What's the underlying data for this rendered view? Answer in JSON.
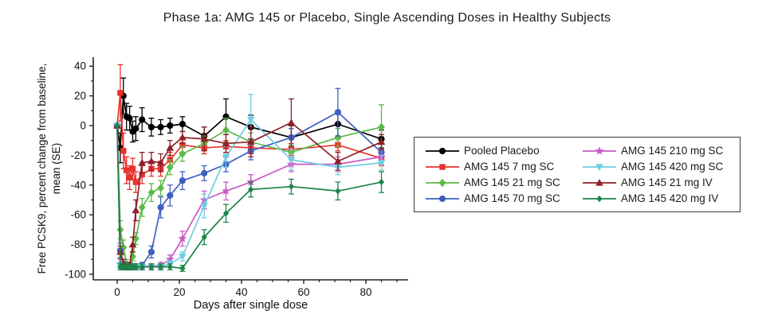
{
  "title": "Phase 1a: AMG 145 or Placebo, Single Ascending Doses in Healthy Subjects",
  "chart_data": {
    "type": "line",
    "title": "Phase 1a: AMG 145 or Placebo, Single Ascending Doses in Healthy Subjects",
    "xlabel": "Days after single dose",
    "ylabel_line1": "Free PCSK9, percent change from baseline,",
    "ylabel_line2": "mean (SE)",
    "x_days": [
      0,
      1,
      2,
      3,
      4,
      5,
      6,
      8,
      11,
      14,
      17,
      21,
      28,
      35,
      43,
      56,
      71,
      85
    ],
    "xlim": [
      -7.5,
      93
    ],
    "ylim": [
      -104,
      46
    ],
    "x_ticks_major": [
      0,
      20,
      40,
      60,
      80
    ],
    "x_tick_minor_step": 5,
    "y_ticks_major": [
      40,
      20,
      0,
      -20,
      -40,
      -60,
      -80,
      -100
    ],
    "y_tick_minor_step": 10,
    "grid": "off",
    "legend_position": "right-box",
    "error_bars": "SE",
    "series": [
      {
        "name": "Pooled Placebo",
        "color": "#000000",
        "marker": "circle",
        "values": [
          0,
          -15,
          20,
          6,
          5,
          -4,
          -2,
          4,
          -1,
          -1,
          0,
          1,
          -7,
          6,
          -1,
          -8,
          1,
          -9
        ],
        "se": [
          0,
          10,
          12,
          9,
          8,
          7,
          8,
          8,
          6,
          5,
          5,
          5,
          6,
          12,
          8,
          8,
          9,
          6
        ]
      },
      {
        "name": "AMG 145 7 mg SC",
        "color": "#e9322d",
        "marker": "square",
        "values": [
          0,
          22,
          -17,
          -30,
          -35,
          -29,
          -38,
          -33,
          -29,
          -29,
          -23,
          -13,
          -15,
          -14,
          -15,
          -16,
          -13,
          -22
        ],
        "se": [
          0,
          19,
          12,
          9,
          8,
          7,
          7,
          6,
          5,
          5,
          5,
          5,
          4,
          4,
          4,
          4,
          4,
          5
        ]
      },
      {
        "name": "AMG 145 21 mg SC",
        "color": "#5cb948",
        "marker": "diamond",
        "values": [
          0,
          -70,
          -82,
          -93,
          -95,
          -88,
          -76,
          -55,
          -45,
          -42,
          -28,
          -19,
          -12,
          -3,
          -11,
          -18,
          -8,
          -1
        ],
        "se": [
          0,
          6,
          5,
          3,
          2,
          3,
          4,
          6,
          6,
          5,
          5,
          5,
          5,
          8,
          6,
          5,
          6,
          15
        ]
      },
      {
        "name": "AMG 145 70 mg SC",
        "color": "#3f5fc0",
        "marker": "circle",
        "values": [
          0,
          -84,
          -93,
          -95,
          -95,
          -95,
          -95,
          -94,
          -85,
          -55,
          -47,
          -37,
          -32,
          -26,
          -17,
          -8,
          9,
          -18
        ],
        "se": [
          0,
          5,
          3,
          2,
          2,
          2,
          2,
          2,
          4,
          7,
          7,
          6,
          5,
          5,
          6,
          6,
          16,
          6
        ]
      },
      {
        "name": "AMG 145 210 mg SC",
        "color": "#ca59c5",
        "marker": "star",
        "values": [
          0,
          -93,
          -95,
          -95,
          -95,
          -95,
          -95,
          -95,
          -95,
          -94,
          -90,
          -76,
          -50,
          -44,
          -38,
          -26,
          -26,
          -21
        ],
        "se": [
          0,
          3,
          2,
          2,
          2,
          2,
          2,
          2,
          2,
          2,
          3,
          5,
          6,
          6,
          5,
          5,
          5,
          5
        ]
      },
      {
        "name": "AMG 145 420 mg SC",
        "color": "#6fcde2",
        "marker": "triangle-down",
        "values": [
          0,
          -94,
          -95,
          -95,
          -95,
          -95,
          -95,
          -95,
          -95,
          -95,
          -93,
          -88,
          -54,
          -21,
          4,
          -23,
          -28,
          -25
        ],
        "se": [
          0,
          2,
          2,
          2,
          2,
          2,
          2,
          2,
          2,
          2,
          2,
          3,
          8,
          7,
          17,
          7,
          5,
          5
        ]
      },
      {
        "name": "AMG 145 21 mg IV",
        "color": "#8f1f28",
        "marker": "triangle-up",
        "values": [
          0,
          -85,
          -93,
          -95,
          -94,
          -80,
          -57,
          -25,
          -24,
          -25,
          -15,
          -8,
          -9,
          -12,
          -11,
          2,
          -24,
          -11
        ],
        "se": [
          0,
          4,
          3,
          2,
          2,
          5,
          7,
          7,
          6,
          6,
          5,
          4,
          8,
          6,
          10,
          16,
          6,
          5
        ]
      },
      {
        "name": "AMG 145 420 mg IV",
        "color": "#1b8549",
        "marker": "diamond-small",
        "values": [
          0,
          -95,
          -95,
          -95,
          -95,
          -95,
          -95,
          -95,
          -95,
          -95,
          -95,
          -96,
          -75,
          -59,
          -43,
          -41,
          -44,
          -38
        ],
        "se": [
          0,
          2,
          2,
          2,
          2,
          2,
          2,
          2,
          2,
          2,
          2,
          2,
          5,
          6,
          5,
          5,
          6,
          7
        ]
      }
    ],
    "legend_columns": [
      [
        0,
        1,
        2,
        3
      ],
      [
        4,
        5,
        6,
        7
      ]
    ]
  }
}
